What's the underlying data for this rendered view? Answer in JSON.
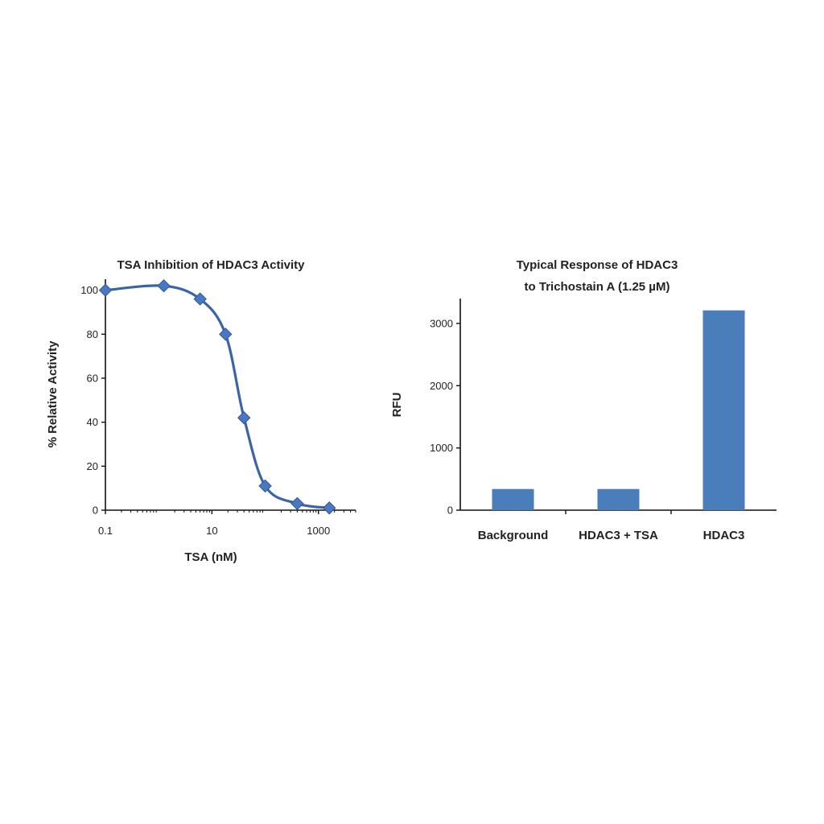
{
  "chart_data": [
    {
      "type": "line",
      "title": "TSA Inhibition of HDAC3 Activity",
      "xlabel": "TSA (nM)",
      "ylabel": "% Relative Activity",
      "x_scale": "log",
      "xlim": [
        0.1,
        5000
      ],
      "ylim": [
        0,
        105
      ],
      "x_ticks": [
        "0.1",
        "10",
        "1000"
      ],
      "y_ticks": [
        "0",
        "20",
        "40",
        "60",
        "80",
        "100"
      ],
      "grid": false,
      "series": [
        {
          "x": [
            0.1,
            1.25,
            6,
            18,
            40,
            100,
            400,
            1600
          ],
          "y": [
            100,
            102,
            96,
            80,
            42,
            11,
            3,
            1
          ]
        }
      ],
      "colors": {
        "line": "#3a64a6",
        "marker": "#4a78c2"
      }
    },
    {
      "type": "bar",
      "title_lines": [
        "Typical Response of HDAC3",
        "to Trichostain A (1.25 µM)"
      ],
      "xlabel": "",
      "ylabel": "RFU",
      "categories": [
        "Background",
        "HDAC3 + TSA",
        "HDAC3"
      ],
      "values": [
        340,
        340,
        3210
      ],
      "ylim": [
        0,
        3400
      ],
      "y_ticks": [
        "0",
        "1000",
        "2000",
        "3000"
      ],
      "grid": false,
      "colors": {
        "bar": "#4a7ebb"
      }
    }
  ]
}
